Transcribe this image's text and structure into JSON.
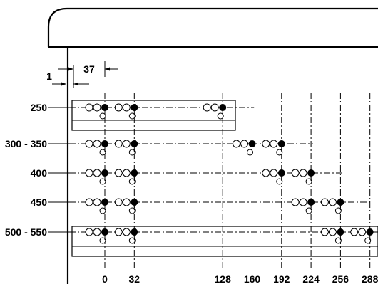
{
  "dimensions": {
    "edge_offset": "1",
    "first_column": "37"
  },
  "rows": [
    {
      "label": "250",
      "slots": [
        {
          "hole": 0,
          "side": "b"
        },
        {
          "hole": 32,
          "side": "b"
        },
        {
          "hole": 128,
          "side": "b"
        }
      ]
    },
    {
      "label": "300 - 350",
      "slots": [
        {
          "hole": 0,
          "side": "b"
        },
        {
          "hole": 32,
          "side": "b"
        },
        {
          "hole": 160,
          "side": "b"
        },
        {
          "hole": 192,
          "side": "b"
        }
      ]
    },
    {
      "label": "400",
      "slots": [
        {
          "hole": 0,
          "side": "b"
        },
        {
          "hole": 32,
          "side": "b"
        },
        {
          "hole": 192,
          "side": "b"
        },
        {
          "hole": 224,
          "side": "b"
        }
      ]
    },
    {
      "label": "450",
      "slots": [
        {
          "hole": 0,
          "side": "b"
        },
        {
          "hole": 32,
          "side": "b"
        },
        {
          "hole": 224,
          "side": "b"
        },
        {
          "hole": 256,
          "side": "b"
        }
      ]
    },
    {
      "label": "500 - 550",
      "slots": [
        {
          "hole": 0,
          "side": "b"
        },
        {
          "hole": 32,
          "side": "b"
        },
        {
          "hole": 256,
          "side": "b"
        },
        {
          "hole": 288,
          "side": "b"
        }
      ]
    }
  ],
  "x_ticks": [
    {
      "value": 0,
      "label": "0"
    },
    {
      "value": 32,
      "label": "32"
    },
    {
      "value": 128,
      "label": "128"
    },
    {
      "value": 160,
      "label": "160"
    },
    {
      "value": 192,
      "label": "192"
    },
    {
      "value": 224,
      "label": "224"
    },
    {
      "value": 256,
      "label": "256"
    },
    {
      "value": 288,
      "label": "288"
    }
  ],
  "boxed_rows": [
    0,
    4
  ]
}
